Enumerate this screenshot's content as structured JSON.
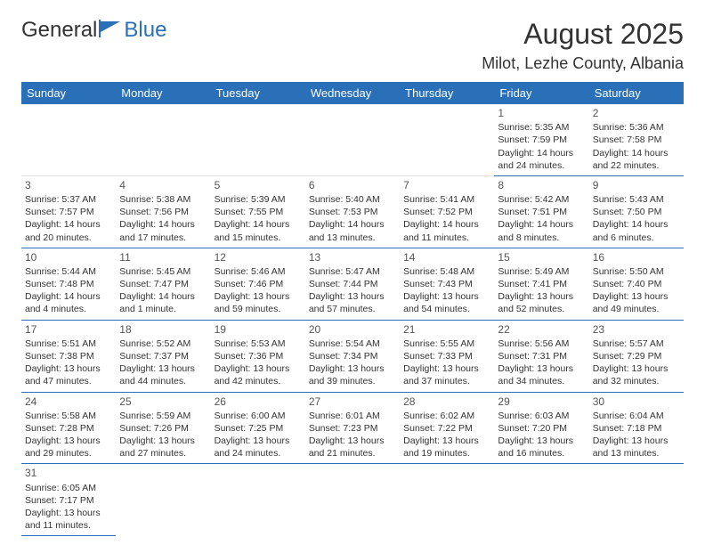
{
  "logo": {
    "part1": "General",
    "part2": "Blue"
  },
  "title": "August 2025",
  "location": "Milot, Lezhe County, Albania",
  "colors": {
    "accent": "#2a70b8",
    "text": "#333333",
    "bg": "#ffffff"
  },
  "daysOfWeek": [
    "Sunday",
    "Monday",
    "Tuesday",
    "Wednesday",
    "Thursday",
    "Friday",
    "Saturday"
  ],
  "firstDayOffset": 5,
  "days": [
    {
      "n": 1,
      "sunrise": "5:35 AM",
      "sunset": "7:59 PM",
      "daylight": "14 hours and 24 minutes."
    },
    {
      "n": 2,
      "sunrise": "5:36 AM",
      "sunset": "7:58 PM",
      "daylight": "14 hours and 22 minutes."
    },
    {
      "n": 3,
      "sunrise": "5:37 AM",
      "sunset": "7:57 PM",
      "daylight": "14 hours and 20 minutes."
    },
    {
      "n": 4,
      "sunrise": "5:38 AM",
      "sunset": "7:56 PM",
      "daylight": "14 hours and 17 minutes."
    },
    {
      "n": 5,
      "sunrise": "5:39 AM",
      "sunset": "7:55 PM",
      "daylight": "14 hours and 15 minutes."
    },
    {
      "n": 6,
      "sunrise": "5:40 AM",
      "sunset": "7:53 PM",
      "daylight": "14 hours and 13 minutes."
    },
    {
      "n": 7,
      "sunrise": "5:41 AM",
      "sunset": "7:52 PM",
      "daylight": "14 hours and 11 minutes."
    },
    {
      "n": 8,
      "sunrise": "5:42 AM",
      "sunset": "7:51 PM",
      "daylight": "14 hours and 8 minutes."
    },
    {
      "n": 9,
      "sunrise": "5:43 AM",
      "sunset": "7:50 PM",
      "daylight": "14 hours and 6 minutes."
    },
    {
      "n": 10,
      "sunrise": "5:44 AM",
      "sunset": "7:48 PM",
      "daylight": "14 hours and 4 minutes."
    },
    {
      "n": 11,
      "sunrise": "5:45 AM",
      "sunset": "7:47 PM",
      "daylight": "14 hours and 1 minute."
    },
    {
      "n": 12,
      "sunrise": "5:46 AM",
      "sunset": "7:46 PM",
      "daylight": "13 hours and 59 minutes."
    },
    {
      "n": 13,
      "sunrise": "5:47 AM",
      "sunset": "7:44 PM",
      "daylight": "13 hours and 57 minutes."
    },
    {
      "n": 14,
      "sunrise": "5:48 AM",
      "sunset": "7:43 PM",
      "daylight": "13 hours and 54 minutes."
    },
    {
      "n": 15,
      "sunrise": "5:49 AM",
      "sunset": "7:41 PM",
      "daylight": "13 hours and 52 minutes."
    },
    {
      "n": 16,
      "sunrise": "5:50 AM",
      "sunset": "7:40 PM",
      "daylight": "13 hours and 49 minutes."
    },
    {
      "n": 17,
      "sunrise": "5:51 AM",
      "sunset": "7:38 PM",
      "daylight": "13 hours and 47 minutes."
    },
    {
      "n": 18,
      "sunrise": "5:52 AM",
      "sunset": "7:37 PM",
      "daylight": "13 hours and 44 minutes."
    },
    {
      "n": 19,
      "sunrise": "5:53 AM",
      "sunset": "7:36 PM",
      "daylight": "13 hours and 42 minutes."
    },
    {
      "n": 20,
      "sunrise": "5:54 AM",
      "sunset": "7:34 PM",
      "daylight": "13 hours and 39 minutes."
    },
    {
      "n": 21,
      "sunrise": "5:55 AM",
      "sunset": "7:33 PM",
      "daylight": "13 hours and 37 minutes."
    },
    {
      "n": 22,
      "sunrise": "5:56 AM",
      "sunset": "7:31 PM",
      "daylight": "13 hours and 34 minutes."
    },
    {
      "n": 23,
      "sunrise": "5:57 AM",
      "sunset": "7:29 PM",
      "daylight": "13 hours and 32 minutes."
    },
    {
      "n": 24,
      "sunrise": "5:58 AM",
      "sunset": "7:28 PM",
      "daylight": "13 hours and 29 minutes."
    },
    {
      "n": 25,
      "sunrise": "5:59 AM",
      "sunset": "7:26 PM",
      "daylight": "13 hours and 27 minutes."
    },
    {
      "n": 26,
      "sunrise": "6:00 AM",
      "sunset": "7:25 PM",
      "daylight": "13 hours and 24 minutes."
    },
    {
      "n": 27,
      "sunrise": "6:01 AM",
      "sunset": "7:23 PM",
      "daylight": "13 hours and 21 minutes."
    },
    {
      "n": 28,
      "sunrise": "6:02 AM",
      "sunset": "7:22 PM",
      "daylight": "13 hours and 19 minutes."
    },
    {
      "n": 29,
      "sunrise": "6:03 AM",
      "sunset": "7:20 PM",
      "daylight": "13 hours and 16 minutes."
    },
    {
      "n": 30,
      "sunrise": "6:04 AM",
      "sunset": "7:18 PM",
      "daylight": "13 hours and 13 minutes."
    },
    {
      "n": 31,
      "sunrise": "6:05 AM",
      "sunset": "7:17 PM",
      "daylight": "13 hours and 11 minutes."
    }
  ],
  "labels": {
    "sunrise": "Sunrise:",
    "sunset": "Sunset:",
    "daylight": "Daylight:"
  }
}
